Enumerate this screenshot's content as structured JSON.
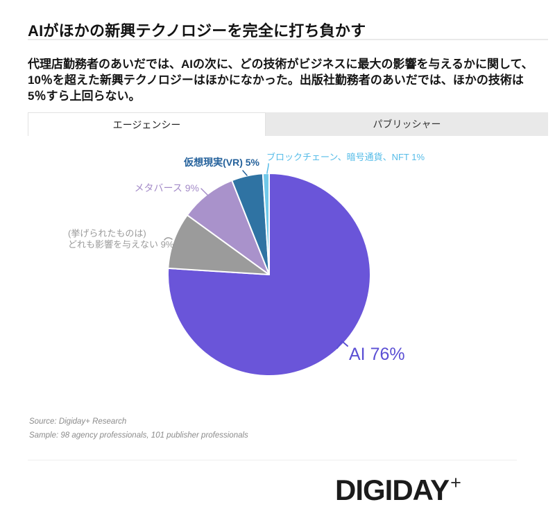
{
  "page": {
    "title": "AIがほかの新興テクノロジーを完全に打ち負かす",
    "subtitle": "代理店勤務者のあいだでは、AIの次に、どの技術がビジネスに最大の影響を与えるかに関して、10％を超えた新興テクノロジーはほかになかった。出版社勤務者のあいだでは、ほかの技術は5％すら上回らない。"
  },
  "tabs": [
    {
      "id": "agency",
      "label": "エージェンシー",
      "active": true
    },
    {
      "id": "publisher",
      "label": "パブリッシャー",
      "active": false
    }
  ],
  "chart_data": {
    "type": "pie",
    "active_tab": "エージェンシー",
    "unit": "%",
    "direction": "clockwise",
    "start_angle_deg": 0,
    "slices": [
      {
        "name": "AI",
        "value": 76,
        "color": "#6A55D9",
        "label_color": "#5B4FD4",
        "label_lines": [
          "AI 76%"
        ]
      },
      {
        "name": "(挙げられたものは)どれも影響を与えない",
        "value": 9,
        "color": "#9B9B9B",
        "label_color": "#9B9B9B",
        "label_lines": [
          "(挙げられたものは)",
          "どれも影響を与えない 9%"
        ]
      },
      {
        "name": "メタバース",
        "value": 9,
        "color": "#A992CB",
        "label_color": "#A48BC8",
        "label_lines": [
          "メタバース 9%"
        ]
      },
      {
        "name": "仮想現実(VR)",
        "value": 5,
        "color": "#2F73A3",
        "label_color": "#24619B",
        "label_lines": [
          "仮想現実(VR) 5%"
        ]
      },
      {
        "name": "ブロックチェーン、暗号通貨、NFT",
        "value": 1,
        "color": "#6FC8E9",
        "label_color": "#56BCE8",
        "label_lines": [
          "ブロックチェーン、暗号通貨、NFT 1%"
        ]
      }
    ]
  },
  "footer": {
    "source": "Source: Digiday+ Research",
    "sample": "Sample: 98 agency professionals, 101 publisher professionals"
  },
  "logo": {
    "text": "DIGIDAY",
    "plus": "+"
  }
}
